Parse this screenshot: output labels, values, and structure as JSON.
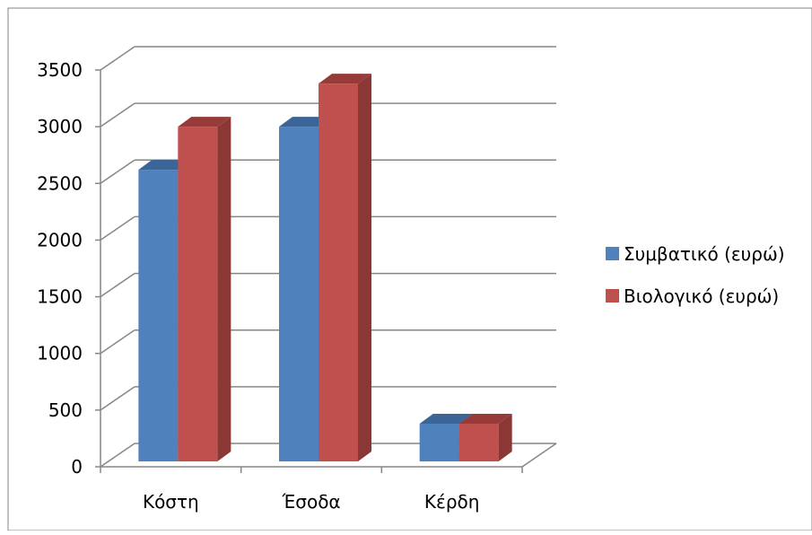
{
  "chart_data": {
    "type": "bar",
    "title": "",
    "xlabel": "",
    "ylabel": "",
    "categories": [
      "Κόστη",
      "Έσοδα",
      "Κέρδη"
    ],
    "series": [
      {
        "name": "Συμβατικό (ευρώ)",
        "values": [
          2620,
          3000,
          380
        ],
        "color": "#4F81BD",
        "side_color": "#385D8A",
        "top_color": "#3B6497"
      },
      {
        "name": "Βιολογικό (ευρώ)",
        "values": [
          3000,
          3380,
          380
        ],
        "color": "#C0504D",
        "side_color": "#8B3735",
        "top_color": "#963B38"
      }
    ],
    "ylim": [
      0,
      3500
    ],
    "yticks": [
      "0",
      "500",
      "1000",
      "1500",
      "2000",
      "2500",
      "3000",
      "3500"
    ],
    "grid": true,
    "legend_position": "right",
    "frame_color": "#868686",
    "grid_color": "#868686"
  }
}
